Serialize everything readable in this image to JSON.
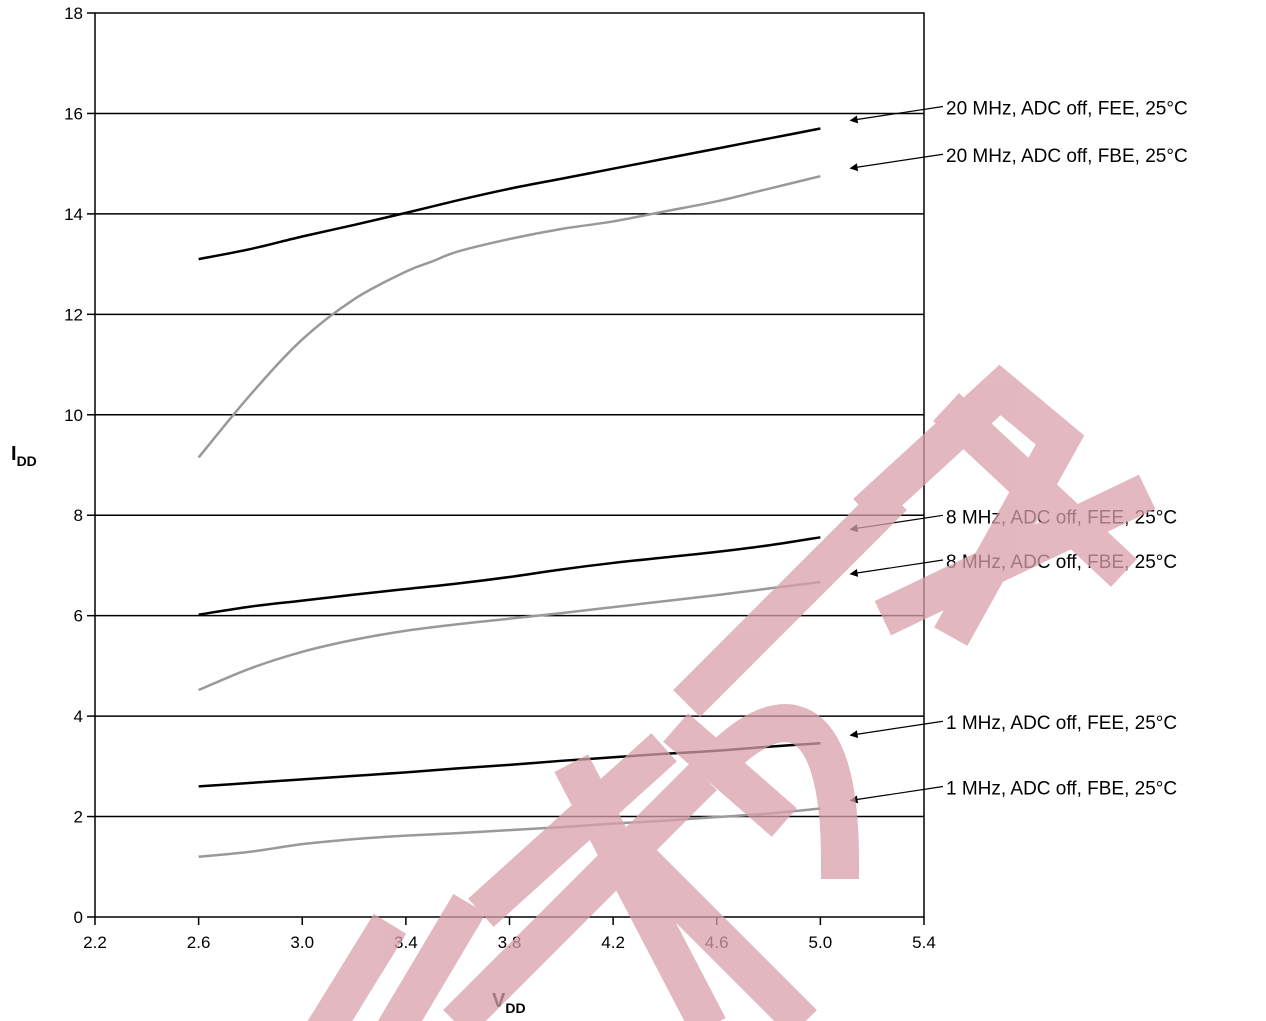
{
  "chart_data": {
    "type": "line",
    "title": "",
    "xlabel": "V",
    "xlabel_sub": "DD",
    "ylabel": "I",
    "ylabel_sub": "DD",
    "xlim": [
      2.2,
      5.4
    ],
    "ylim": [
      0,
      18
    ],
    "xticks": [
      "2.2",
      "2.6",
      "3.0",
      "3.4",
      "3.8",
      "4.2",
      "4.6",
      "5.0",
      "5.4"
    ],
    "yticks": [
      "0",
      "2",
      "4",
      "6",
      "8",
      "10",
      "12",
      "14",
      "16",
      "18"
    ],
    "grid": "horizontal",
    "series": [
      {
        "name": "20 MHz, ADC off, FEE, 25°C",
        "color": "#000000",
        "x": [
          2.6,
          2.8,
          3.0,
          3.2,
          3.4,
          3.6,
          3.8,
          4.0,
          4.2,
          4.4,
          4.6,
          4.8,
          5.0
        ],
        "y": [
          13.1,
          13.3,
          13.55,
          13.78,
          14.02,
          14.27,
          14.5,
          14.7,
          14.9,
          15.1,
          15.3,
          15.5,
          15.7
        ]
      },
      {
        "name": "20 MHz, ADC off, FBE, 25°C",
        "color": "#999999",
        "x": [
          2.6,
          2.8,
          3.0,
          3.2,
          3.4,
          3.5,
          3.6,
          3.8,
          4.0,
          4.2,
          4.4,
          4.6,
          4.8,
          5.0
        ],
        "y": [
          9.15,
          10.4,
          11.5,
          12.3,
          12.85,
          13.05,
          13.25,
          13.5,
          13.7,
          13.85,
          14.05,
          14.25,
          14.5,
          14.75
        ]
      },
      {
        "name": "8 MHz, ADC off, FEE, 25°C",
        "color": "#000000",
        "x": [
          2.6,
          2.8,
          3.0,
          3.2,
          3.4,
          3.6,
          3.8,
          4.0,
          4.2,
          4.4,
          4.6,
          4.8,
          5.0
        ],
        "y": [
          6.02,
          6.18,
          6.3,
          6.42,
          6.53,
          6.64,
          6.77,
          6.92,
          7.05,
          7.16,
          7.27,
          7.4,
          7.56
        ]
      },
      {
        "name": "8 MHz, ADC off, FBE, 25°C",
        "color": "#999999",
        "x": [
          2.6,
          2.8,
          3.0,
          3.2,
          3.4,
          3.6,
          3.8,
          4.0,
          4.2,
          4.4,
          4.6,
          4.8,
          5.0
        ],
        "y": [
          4.52,
          4.95,
          5.28,
          5.52,
          5.7,
          5.83,
          5.94,
          6.05,
          6.17,
          6.29,
          6.41,
          6.54,
          6.67
        ]
      },
      {
        "name": "1 MHz, ADC off, FEE, 25°C",
        "color": "#000000",
        "x": [
          2.6,
          2.8,
          3.0,
          3.2,
          3.4,
          3.6,
          3.8,
          4.0,
          4.2,
          4.4,
          4.6,
          4.8,
          5.0
        ],
        "y": [
          2.6,
          2.67,
          2.74,
          2.81,
          2.88,
          2.96,
          3.03,
          3.11,
          3.18,
          3.25,
          3.31,
          3.39,
          3.46
        ]
      },
      {
        "name": "1 MHz, ADC off, FBE, 25°C",
        "color": "#999999",
        "x": [
          2.6,
          2.8,
          3.0,
          3.2,
          3.4,
          3.6,
          3.8,
          4.0,
          4.2,
          4.4,
          4.6,
          4.8,
          5.0
        ],
        "y": [
          1.2,
          1.3,
          1.45,
          1.55,
          1.62,
          1.67,
          1.73,
          1.79,
          1.86,
          1.92,
          1.99,
          2.06,
          2.16
        ]
      }
    ],
    "annotations": [
      {
        "text": "20 MHz, ADC off, FEE, 25°C",
        "series_index": 0
      },
      {
        "text": "20 MHz, ADC off, FBE, 25°C",
        "series_index": 1
      },
      {
        "text": "8 MHz, ADC off, FEE, 25°C",
        "series_index": 2
      },
      {
        "text": "8 MHz, ADC off, FBE, 25°C",
        "series_index": 3
      },
      {
        "text": "1 MHz, ADC off, FEE, 25°C",
        "series_index": 4
      },
      {
        "text": "1 MHz, ADC off, FBE, 25°C",
        "series_index": 5
      }
    ]
  },
  "watermark": {
    "color": "#d9a0ab"
  }
}
